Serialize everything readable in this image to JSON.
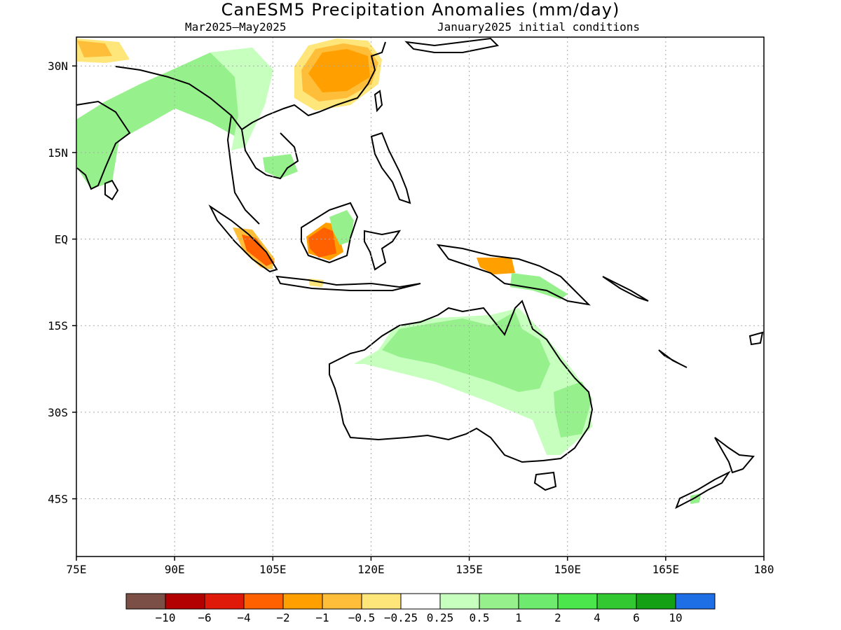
{
  "title": "CanESM5 Precipitation Anomalies (mm/day)",
  "subtitle_left": "Mar2025—May2025",
  "subtitle_right": "January2025 initial conditions",
  "map": {
    "lon_range": [
      75,
      180
    ],
    "lat_range": [
      -55,
      35
    ],
    "lon_ticks": [
      {
        "value": 75,
        "label": "75E"
      },
      {
        "value": 90,
        "label": "90E"
      },
      {
        "value": 105,
        "label": "105E"
      },
      {
        "value": 120,
        "label": "120E"
      },
      {
        "value": 135,
        "label": "135E"
      },
      {
        "value": 150,
        "label": "150E"
      },
      {
        "value": 165,
        "label": "165E"
      },
      {
        "value": 180,
        "label": "180"
      }
    ],
    "lat_ticks": [
      {
        "value": 30,
        "label": "30N"
      },
      {
        "value": 15,
        "label": "15N"
      },
      {
        "value": 0,
        "label": "EQ"
      },
      {
        "value": -15,
        "label": "15S"
      },
      {
        "value": -30,
        "label": "30S"
      },
      {
        "value": -45,
        "label": "45S"
      }
    ],
    "grid": "dotted"
  },
  "colorbar": {
    "colors": [
      "#7b4f45",
      "#b30000",
      "#e01a0a",
      "#ff6000",
      "#ff9f00",
      "#ffbe3a",
      "#ffe67a",
      "#ffffff",
      "#c6ffbe",
      "#96f08c",
      "#6eeb6e",
      "#4be64b",
      "#32c832",
      "#14a014",
      "#1e6ee6"
    ],
    "labels": [
      "−10",
      "−6",
      "−4",
      "−2",
      "−1",
      "−0.5",
      "−0.25",
      "0.25",
      "0.5",
      "1",
      "2",
      "4",
      "6",
      "10"
    ]
  }
}
